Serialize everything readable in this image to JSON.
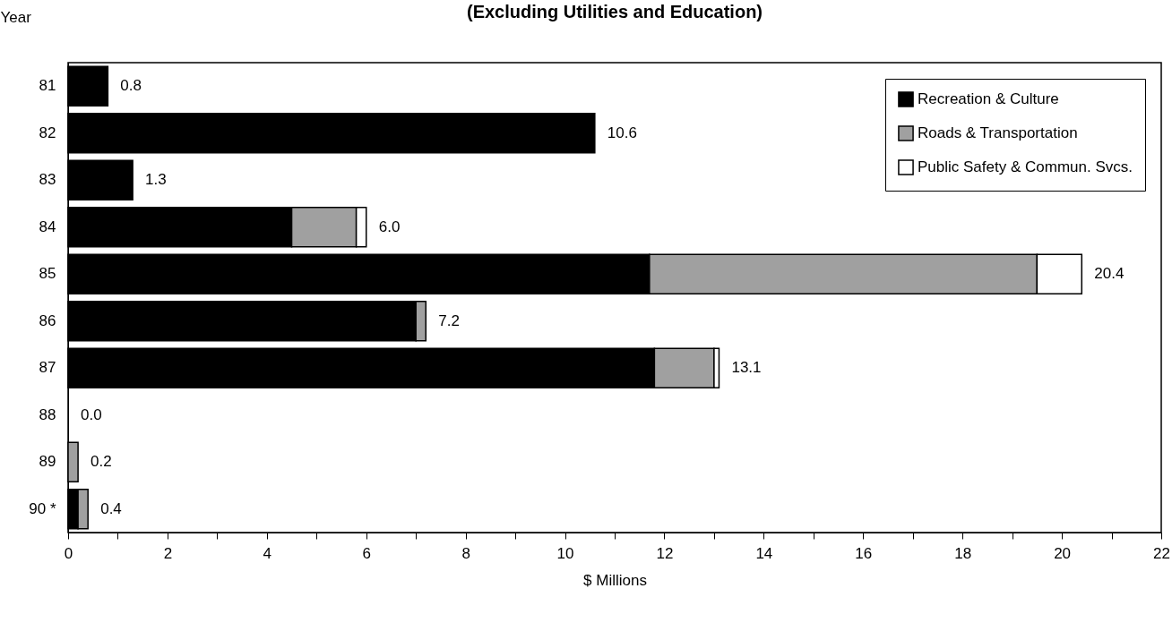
{
  "chart_data": {
    "type": "bar",
    "orientation": "horizontal",
    "stacked": true,
    "title": "(Excluding Utilities and Education)",
    "xlabel": "$ Millions",
    "ylabel": "Year",
    "categories": [
      "81",
      "82",
      "83",
      "84",
      "85",
      "86",
      "87",
      "88",
      "89",
      "90 *"
    ],
    "series": [
      {
        "name": "Recreation & Culture",
        "color": "#000000",
        "values": [
          0.8,
          10.6,
          1.3,
          4.5,
          11.7,
          7.0,
          11.8,
          null,
          null,
          0.2
        ]
      },
      {
        "name": "Roads & Transportation",
        "color": "#a0a0a0",
        "values": [
          null,
          null,
          null,
          1.3,
          7.8,
          0.2,
          1.2,
          null,
          0.2,
          0.2
        ]
      },
      {
        "name": "Public Safety & Commun. Svcs.",
        "color": "#ffffff",
        "values": [
          null,
          null,
          null,
          0.2,
          0.9,
          null,
          0.1,
          null,
          null,
          null
        ]
      }
    ],
    "totals": [
      "0.8",
      "10.6",
      "1.3",
      "6.0",
      "20.4",
      "7.2",
      "13.1",
      "0.0",
      "0.2",
      "0.4"
    ],
    "xlim": [
      0,
      22
    ],
    "xticks": [
      0,
      {
        "value": 1,
        "label": null
      },
      2,
      {
        "value": 3,
        "label": null
      },
      4,
      {
        "value": 5,
        "label": null
      },
      6,
      {
        "value": 7,
        "label": null
      },
      8,
      {
        "value": 9,
        "label": null
      },
      10,
      {
        "value": 11,
        "label": null
      },
      12,
      {
        "value": 13,
        "label": null
      },
      14,
      {
        "value": 15,
        "label": null
      },
      16,
      {
        "value": 17,
        "label": null
      },
      18,
      {
        "value": 19,
        "label": null
      },
      20,
      {
        "value": 21,
        "label": null
      },
      22
    ],
    "legend": "top right"
  }
}
